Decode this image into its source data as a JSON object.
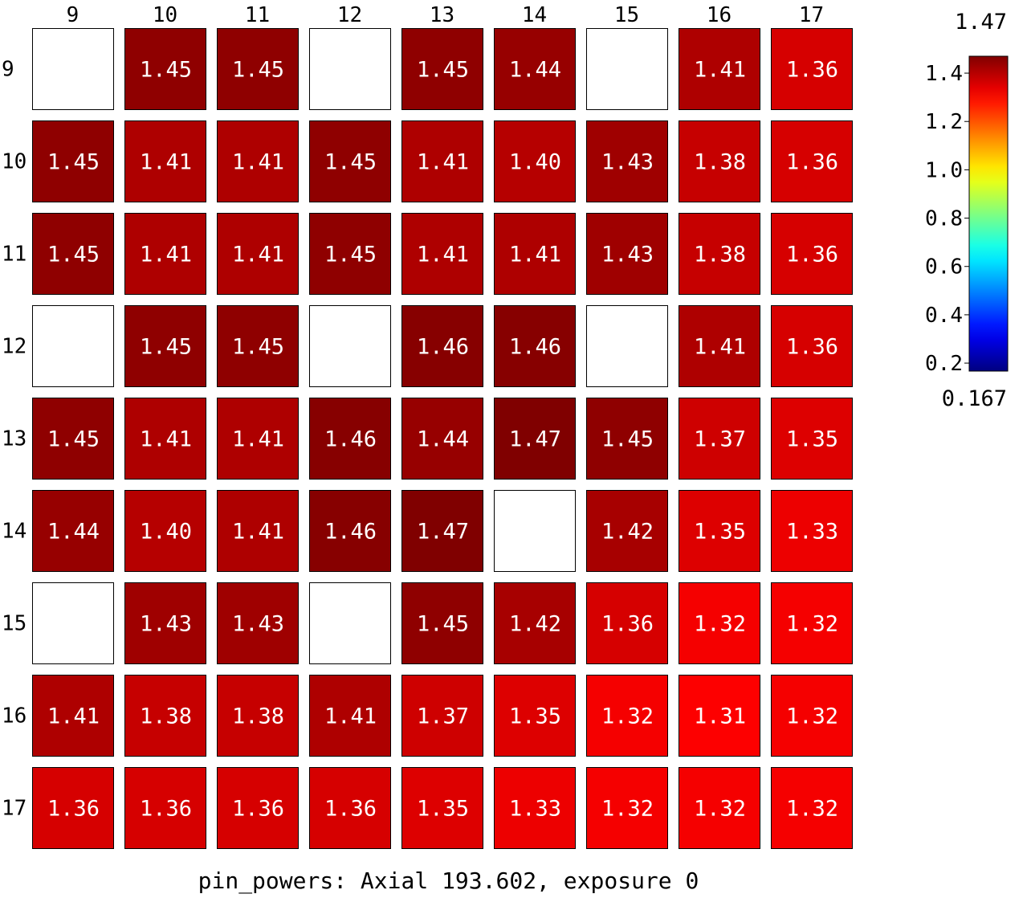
{
  "caption": "pin_powers: Axial 193.602, exposure 0",
  "chart_data": {
    "type": "heatmap",
    "title": "pin_powers: Axial 193.602, exposure 0",
    "columns": [
      "9",
      "10",
      "11",
      "12",
      "13",
      "14",
      "15",
      "16",
      "17"
    ],
    "rows": [
      "9",
      "10",
      "11",
      "12",
      "13",
      "14",
      "15",
      "16",
      "17"
    ],
    "values": [
      [
        null,
        1.45,
        1.45,
        null,
        1.45,
        1.44,
        null,
        1.41,
        1.36
      ],
      [
        1.45,
        1.41,
        1.41,
        1.45,
        1.41,
        1.4,
        1.43,
        1.38,
        1.36
      ],
      [
        1.45,
        1.41,
        1.41,
        1.45,
        1.41,
        1.41,
        1.43,
        1.38,
        1.36
      ],
      [
        null,
        1.45,
        1.45,
        null,
        1.46,
        1.46,
        null,
        1.41,
        1.36
      ],
      [
        1.45,
        1.41,
        1.41,
        1.46,
        1.44,
        1.47,
        1.45,
        1.37,
        1.35
      ],
      [
        1.44,
        1.4,
        1.41,
        1.46,
        1.47,
        null,
        1.42,
        1.35,
        1.33
      ],
      [
        null,
        1.43,
        1.43,
        null,
        1.45,
        1.42,
        1.36,
        1.32,
        1.32
      ],
      [
        1.41,
        1.38,
        1.38,
        1.41,
        1.37,
        1.35,
        1.32,
        1.31,
        1.32
      ],
      [
        1.36,
        1.36,
        1.36,
        1.36,
        1.35,
        1.33,
        1.32,
        1.32,
        1.32
      ]
    ],
    "labels": [
      [
        null,
        "1.45",
        "1.45",
        null,
        "1.45",
        "1.44",
        null,
        "1.41",
        "1.36"
      ],
      [
        "1.45",
        "1.41",
        "1.41",
        "1.45",
        "1.41",
        "1.40",
        "1.43",
        "1.38",
        "1.36"
      ],
      [
        "1.45",
        "1.41",
        "1.41",
        "1.45",
        "1.41",
        "1.41",
        "1.43",
        "1.38",
        "1.36"
      ],
      [
        null,
        "1.45",
        "1.45",
        null,
        "1.46",
        "1.46",
        null,
        "1.41",
        "1.36"
      ],
      [
        "1.45",
        "1.41",
        "1.41",
        "1.46",
        "1.44",
        "1.47",
        "1.45",
        "1.37",
        "1.35"
      ],
      [
        "1.44",
        "1.40",
        "1.41",
        "1.46",
        "1.47",
        null,
        "1.42",
        "1.35",
        "1.33"
      ],
      [
        null,
        "1.43",
        "1.43",
        null,
        "1.45",
        "1.42",
        "1.36",
        "1.32",
        "1.32"
      ],
      [
        "1.41",
        "1.38",
        "1.38",
        "1.41",
        "1.37",
        "1.35",
        "1.32",
        "1.31",
        "1.32"
      ],
      [
        "1.36",
        "1.36",
        "1.36",
        "1.36",
        "1.35",
        "1.33",
        "1.32",
        "1.32",
        "1.32"
      ]
    ],
    "colorbar": {
      "colormap": "jet",
      "min": 0.167,
      "max": 1.47,
      "min_label": "0.167",
      "max_label": "1.47",
      "ticks": [
        0.2,
        0.4,
        0.6,
        0.8,
        1.0,
        1.2,
        1.4
      ],
      "tick_labels": [
        "0.2",
        "0.4",
        "0.6",
        "0.8",
        "1.0",
        "1.2",
        "1.4"
      ]
    },
    "empty_cell_color": "#ffffff",
    "cell_border_color": "#000000"
  }
}
